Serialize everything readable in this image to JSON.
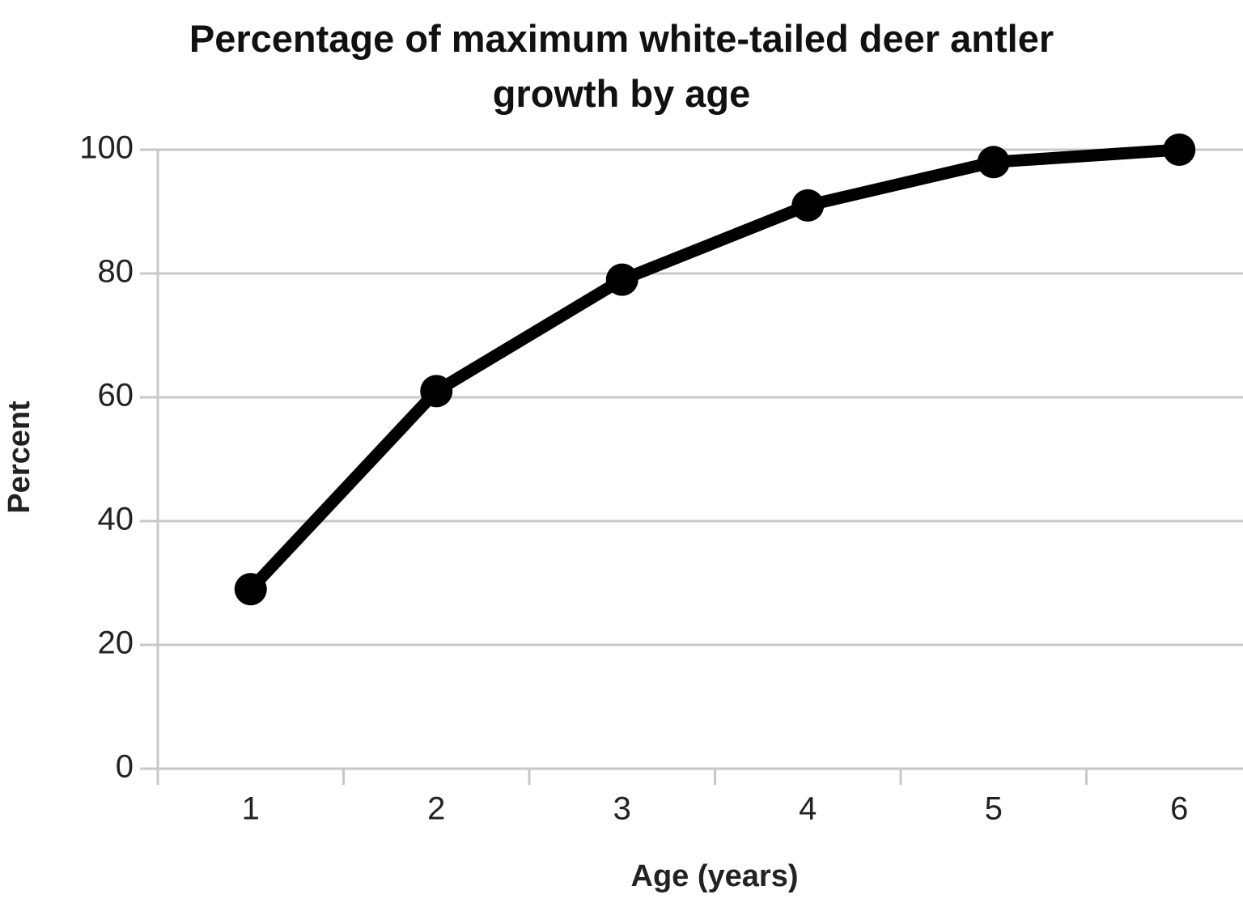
{
  "chart_data": {
    "type": "line",
    "title": "Percentage of maximum white-tailed deer antler growth by age",
    "x_label": "Age (years)",
    "y_label": "Percent",
    "categories": [
      "1",
      "2",
      "3",
      "4",
      "5",
      "6"
    ],
    "values": [
      29,
      61,
      79,
      91,
      98,
      100
    ],
    "color": "#000000",
    "ylim": [
      0,
      100
    ],
    "yticks": [
      0,
      20,
      40,
      60,
      80,
      100
    ],
    "grid": true
  }
}
